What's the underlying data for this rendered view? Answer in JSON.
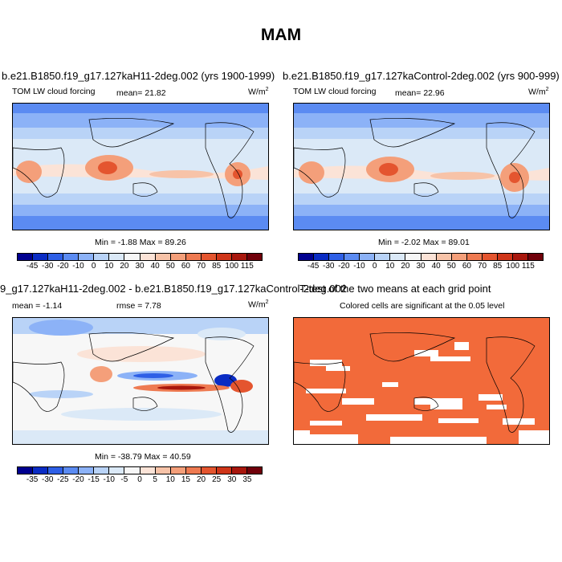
{
  "figure": {
    "title": "MAM"
  },
  "panels": {
    "top_left": {
      "title": "b.e21.B1850.f19_g17.127kaH11-2deg.002 (yrs 1900-1999)",
      "variable": "TOM LW cloud forcing",
      "stat": "mean=  21.82",
      "units": "W/m",
      "units_exp": "2",
      "minmax": "Min =  -1.88 Max =  89.26"
    },
    "top_right": {
      "title": "b.e21.B1850.f19_g17.127kaControl-2deg.002 (yrs 900-999)",
      "variable": "TOM LW cloud forcing",
      "stat": "mean=  22.96",
      "units": "W/m",
      "units_exp": "2",
      "minmax": "Min =  -2.02 Max =  89.01"
    },
    "bottom_left": {
      "title": "9_g17.127kaH11-2deg.002 - b.e21.B1850.f19_g17.127kaControl-2deg.002",
      "stat_mean": "mean =  -1.14",
      "stat_rmse": "rmse =   7.78",
      "units": "W/m",
      "units_exp": "2",
      "minmax": "Min = -38.79 Max =  40.59"
    },
    "bottom_right": {
      "title": "T-test of the two means at each grid point",
      "subtitle": "Colored cells are significant at the 0.05 level"
    }
  },
  "colorbars": {
    "absolute": {
      "labels": [
        "-45",
        "-30",
        "-20",
        "-10",
        "0",
        "10",
        "20",
        "30",
        "40",
        "50",
        "60",
        "70",
        "85",
        "100",
        "115"
      ],
      "colors": [
        "#00008f",
        "#0a2cc4",
        "#2e5fe6",
        "#5b8bf2",
        "#8cb2f7",
        "#b9d3f7",
        "#dbe9f7",
        "#f7f7f7",
        "#fbe3d7",
        "#f7c3a8",
        "#f49f7a",
        "#ee7a51",
        "#e4552f",
        "#cf3519",
        "#a8170d",
        "#70000a"
      ]
    },
    "difference": {
      "labels": [
        "-35",
        "-30",
        "-25",
        "-20",
        "-15",
        "-10",
        "-5",
        "0",
        "5",
        "10",
        "15",
        "20",
        "25",
        "30",
        "35"
      ],
      "colors": [
        "#00008f",
        "#0a2cc4",
        "#2e5fe6",
        "#5b8bf2",
        "#8cb2f7",
        "#b9d3f7",
        "#dbe9f7",
        "#f7f7f7",
        "#fbe3d7",
        "#f7c3a8",
        "#f49f7a",
        "#ee7a51",
        "#e4552f",
        "#cf3519",
        "#a8170d",
        "#70000a"
      ]
    },
    "ttest_color": "#f26a3a"
  }
}
